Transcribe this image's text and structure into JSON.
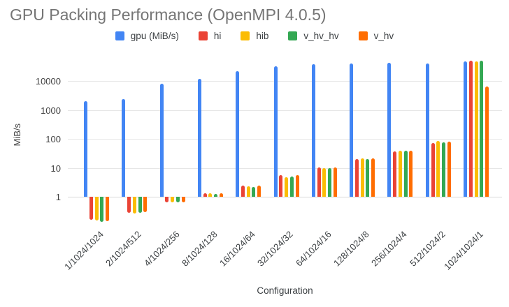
{
  "chart_data": {
    "type": "bar",
    "title": "GPU Packing Performance (OpenMPI 4.0.5)",
    "xlabel": "Configuration",
    "ylabel": "MiB/s",
    "y_scale": "log",
    "baseline": 1,
    "ylim": [
      0.1,
      60000
    ],
    "y_ticks": [
      1,
      10,
      100,
      1000,
      10000
    ],
    "grid": "horizontal",
    "legend_position": "top",
    "categories": [
      "1/1024/1024",
      "2/1024/512",
      "4/1024/256",
      "8/1024/128",
      "16/1024/64",
      "32/1024/32",
      "64/1024/16",
      "128/1024/8",
      "256/1024/4",
      "512/1024/2",
      "1024/1024/1"
    ],
    "series": [
      {
        "name": "gpu (MiB/s)",
        "color": "#4285F4",
        "values": [
          2000,
          2400,
          8000,
          12000,
          22000,
          33000,
          38000,
          41000,
          43000,
          40000,
          47000
        ]
      },
      {
        "name": "hi",
        "color": "#EA4335",
        "values": [
          0.16,
          0.28,
          0.65,
          1.35,
          2.5,
          5.5,
          10.5,
          20,
          36,
          73,
          51000
        ]
      },
      {
        "name": "hib",
        "color": "#FBBC04",
        "values": [
          0.15,
          0.27,
          0.63,
          1.3,
          2.3,
          4.8,
          10,
          21,
          39,
          83,
          47000
        ]
      },
      {
        "name": "v_hv_hv",
        "color": "#34A853",
        "values": [
          0.135,
          0.28,
          0.63,
          1.25,
          2.2,
          5.0,
          10,
          20.5,
          40,
          77,
          51000
        ]
      },
      {
        "name": "v_hv",
        "color": "#FF6D01",
        "values": [
          0.145,
          0.29,
          0.65,
          1.3,
          2.5,
          5.5,
          10.5,
          21,
          39,
          80,
          6400
        ]
      }
    ]
  }
}
